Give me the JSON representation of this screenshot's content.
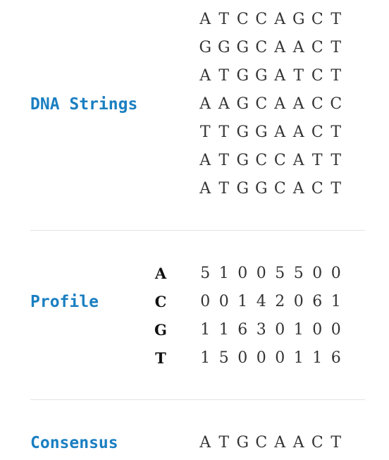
{
  "sections": {
    "dna": {
      "label": "DNA Strings",
      "rows": [
        [
          "A",
          "T",
          "C",
          "C",
          "A",
          "G",
          "C",
          "T"
        ],
        [
          "G",
          "G",
          "G",
          "C",
          "A",
          "A",
          "C",
          "T"
        ],
        [
          "A",
          "T",
          "G",
          "G",
          "A",
          "T",
          "C",
          "T"
        ],
        [
          "A",
          "A",
          "G",
          "C",
          "A",
          "A",
          "C",
          "C"
        ],
        [
          "T",
          "T",
          "G",
          "G",
          "A",
          "A",
          "C",
          "T"
        ],
        [
          "A",
          "T",
          "G",
          "C",
          "C",
          "A",
          "T",
          "T"
        ],
        [
          "A",
          "T",
          "G",
          "G",
          "C",
          "A",
          "C",
          "T"
        ]
      ]
    },
    "profile": {
      "label": "Profile",
      "row_labels": [
        "A",
        "C",
        "G",
        "T"
      ],
      "rows": [
        [
          "5",
          "1",
          "0",
          "0",
          "5",
          "5",
          "0",
          "0"
        ],
        [
          "0",
          "0",
          "1",
          "4",
          "2",
          "0",
          "6",
          "1"
        ],
        [
          "1",
          "1",
          "6",
          "3",
          "0",
          "1",
          "0",
          "0"
        ],
        [
          "1",
          "5",
          "0",
          "0",
          "0",
          "1",
          "1",
          "6"
        ]
      ]
    },
    "consensus": {
      "label": "Consensus",
      "row": [
        "A",
        "T",
        "G",
        "C",
        "A",
        "A",
        "C",
        "T"
      ]
    }
  },
  "colors": {
    "label": "#1a7fc1",
    "text": "#333333",
    "divider": "#e3e3e3"
  }
}
